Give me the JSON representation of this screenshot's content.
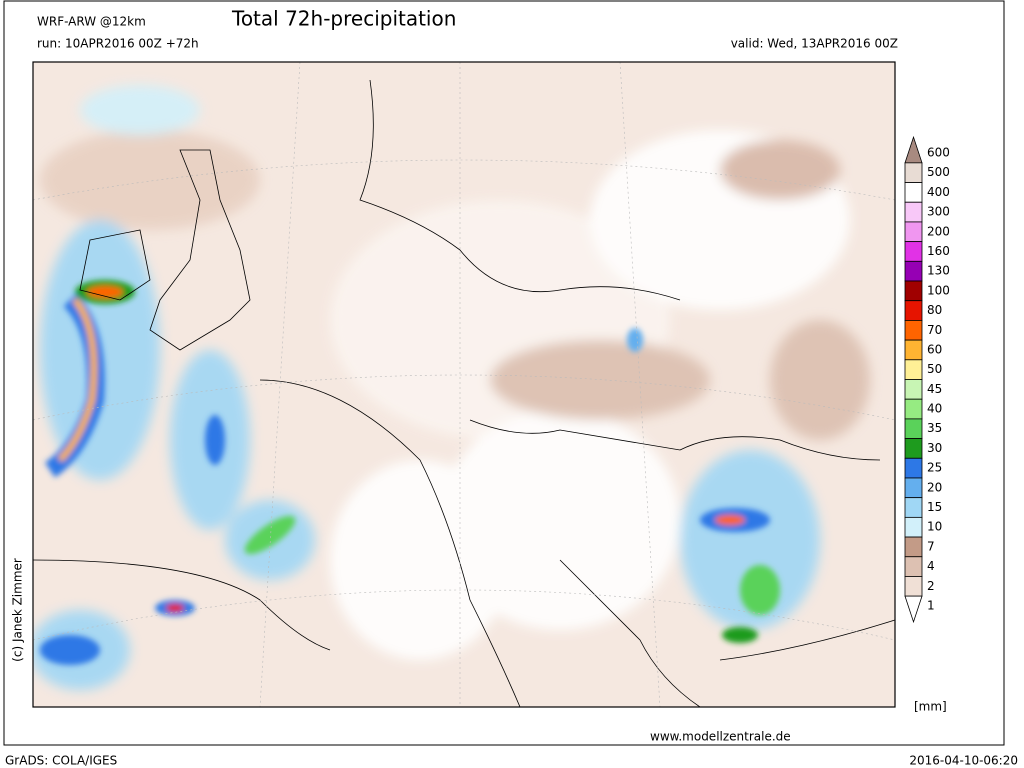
{
  "header": {
    "model": "WRF-ARW @12km",
    "title": "Total 72h-precipitation",
    "run": "run: 10APR2016 00Z +72h",
    "valid": "valid: Wed, 13APR2016 00Z"
  },
  "legend": {
    "unit": "[mm]",
    "entries": [
      {
        "label": "600",
        "color": "#a88a80"
      },
      {
        "label": "500",
        "color": "#e8dcd4"
      },
      {
        "label": "400",
        "color": "#ffffff"
      },
      {
        "label": "300",
        "color": "#f8c8f8"
      },
      {
        "label": "200",
        "color": "#f096f0"
      },
      {
        "label": "160",
        "color": "#e132e6"
      },
      {
        "label": "130",
        "color": "#9600b4"
      },
      {
        "label": "100",
        "color": "#a00000"
      },
      {
        "label": "80",
        "color": "#e61400"
      },
      {
        "label": "70",
        "color": "#ff6400"
      },
      {
        "label": "60",
        "color": "#ffb432"
      },
      {
        "label": "50",
        "color": "#fff096"
      },
      {
        "label": "45",
        "color": "#c8f5b4"
      },
      {
        "label": "40",
        "color": "#96eb82"
      },
      {
        "label": "35",
        "color": "#5ad25a"
      },
      {
        "label": "30",
        "color": "#1e9b1e"
      },
      {
        "label": "25",
        "color": "#2d78e6"
      },
      {
        "label": "20",
        "color": "#64afee"
      },
      {
        "label": "15",
        "color": "#a0d7f5"
      },
      {
        "label": "10",
        "color": "#d2f0fa"
      },
      {
        "label": "7",
        "color": "#c39b87"
      },
      {
        "label": "4",
        "color": "#ddc1b2"
      },
      {
        "label": "2",
        "color": "#f0e0d6"
      },
      {
        "label": "1",
        "color": "#ffffff"
      }
    ]
  },
  "credit": "(c) Janek Zimmer",
  "website": "www.modellzentrale.de",
  "footer": {
    "software": "GrADS: COLA/IGES",
    "timestamp": "2016-04-10-06:20"
  }
}
